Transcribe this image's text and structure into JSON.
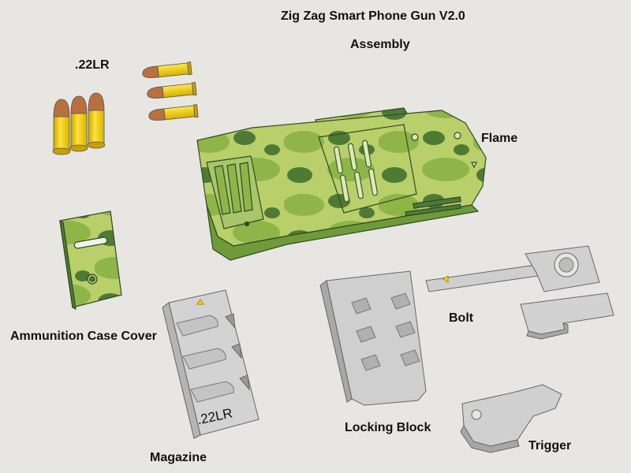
{
  "title": "Zig Zag Smart Phone Gun V2.0",
  "subtitle": "Assembly",
  "labels": {
    "ammo": ".22LR",
    "frame": "Flame",
    "cover": "Ammunition Case Cover",
    "magazine": "Magazine",
    "magazine_engraving": ".22LR",
    "locking_block": "Locking Block",
    "bolt": "Bolt",
    "trigger": "Trigger"
  },
  "colors": {
    "background": "#e7e6e2",
    "part_gray": "#d0d0d0",
    "camo_light": "#b9cf6a",
    "camo_mid": "#8fb548",
    "camo_dark": "#4f7a36",
    "brass": "#f2cf10",
    "copper": "#b8703f"
  }
}
